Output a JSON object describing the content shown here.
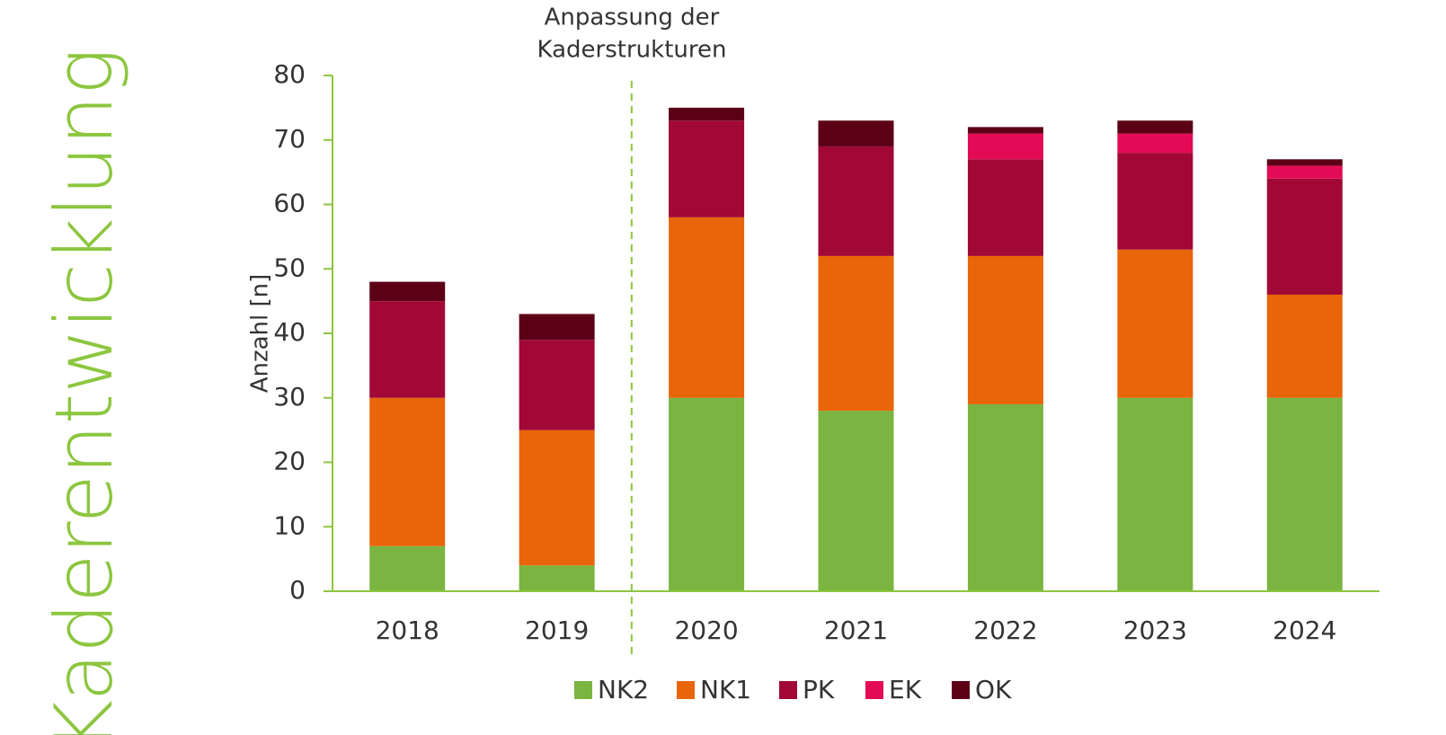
{
  "chart_data": {
    "type": "bar",
    "stacked": true,
    "side_title": "Kaderentwicklung",
    "annotation": [
      "Anpassung der",
      "Kaderstrukturen"
    ],
    "y_label": "Anzahl [n]",
    "categories": [
      "2018",
      "2019",
      "2020",
      "2021",
      "2022",
      "2023",
      "2024"
    ],
    "series": [
      {
        "name": "NK2",
        "color": "#7ab441",
        "values": [
          7,
          4,
          30,
          28,
          29,
          30,
          30
        ]
      },
      {
        "name": "NK1",
        "color": "#e8650a",
        "values": [
          23,
          21,
          28,
          24,
          23,
          23,
          16
        ]
      },
      {
        "name": "PK",
        "color": "#a10836",
        "values": [
          15,
          14,
          15,
          17,
          15,
          15,
          18
        ]
      },
      {
        "name": "EK",
        "color": "#e30b55",
        "values": [
          0,
          0,
          0,
          0,
          4,
          3,
          2
        ]
      },
      {
        "name": "OK",
        "color": "#5c0016",
        "values": [
          3,
          4,
          2,
          4,
          1,
          2,
          1
        ]
      }
    ],
    "ylim": [
      0,
      80
    ],
    "yticks": [
      0,
      10,
      20,
      30,
      40,
      50,
      60,
      70,
      80
    ],
    "axis_color": "#8cc63f",
    "legend": "bottom"
  }
}
